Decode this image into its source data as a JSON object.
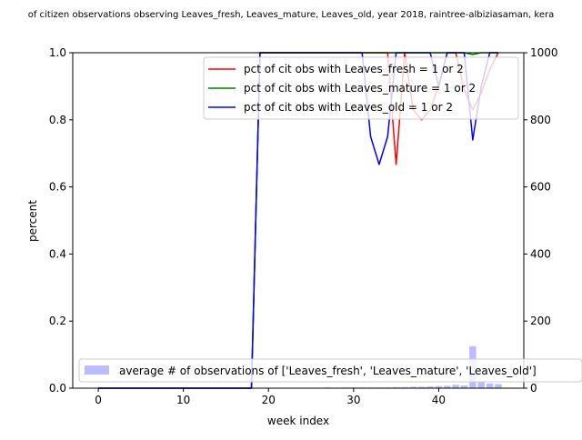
{
  "chart_data": {
    "type": "line",
    "title": "of citizen observations observing Leaves_fresh, Leaves_mature, Leaves_old, year 2018, raintree-albiziasaman, kera",
    "xlabel": "week index",
    "ylabel": "percent",
    "xlim": [
      -3,
      50
    ],
    "ylim": [
      0,
      1.0
    ],
    "y2lim": [
      0,
      1000
    ],
    "x_ticks": [
      0,
      10,
      20,
      30,
      40
    ],
    "y_ticks": [
      0.0,
      0.2,
      0.4,
      0.6,
      0.8,
      1.0
    ],
    "y2_ticks": [
      0,
      200,
      400,
      600,
      800,
      1000
    ],
    "legend_position": "upper right",
    "legend_bar_position": "lower left",
    "series": [
      {
        "name": "pct of cit obs with Leaves_fresh = 1 or 2",
        "color": "#ff0000",
        "x": [
          0,
          1,
          2,
          3,
          4,
          5,
          6,
          7,
          8,
          9,
          10,
          11,
          12,
          13,
          14,
          15,
          16,
          17,
          18,
          19,
          20,
          21,
          22,
          23,
          24,
          25,
          26,
          27,
          28,
          29,
          30,
          31,
          32,
          33,
          34,
          35,
          36,
          37,
          38,
          39,
          40,
          41,
          42,
          43,
          44,
          45,
          46,
          47
        ],
        "y": [
          0,
          0,
          0,
          0,
          0,
          0,
          0,
          0,
          0,
          0,
          0,
          0,
          0,
          0,
          0,
          0,
          0,
          0,
          0,
          1,
          1,
          1,
          1,
          1,
          1,
          1,
          1,
          1,
          1,
          1,
          1,
          1,
          1,
          1,
          1,
          0.667,
          1,
          0.83,
          0.8,
          0.83,
          0.9,
          1,
          1,
          0.89,
          0.83,
          0.88,
          0.95,
          1
        ]
      },
      {
        "name": "pct of cit obs with Leaves_mature = 1 or 2",
        "color": "#008000",
        "x": [
          0,
          1,
          2,
          3,
          4,
          5,
          6,
          7,
          8,
          9,
          10,
          11,
          12,
          13,
          14,
          15,
          16,
          17,
          18,
          19,
          20,
          21,
          22,
          23,
          24,
          25,
          26,
          27,
          28,
          29,
          30,
          31,
          32,
          33,
          34,
          35,
          36,
          37,
          38,
          39,
          40,
          41,
          42,
          43,
          44,
          45,
          46,
          47
        ],
        "y": [
          0,
          0,
          0,
          0,
          0,
          0,
          0,
          0,
          0,
          0,
          0,
          0,
          0,
          0,
          0,
          0,
          0,
          0,
          0,
          1,
          1,
          1,
          1,
          1,
          1,
          1,
          1,
          1,
          1,
          1,
          1,
          1,
          1,
          1,
          1,
          1,
          1,
          1,
          1,
          1,
          1,
          1,
          1,
          1,
          0.995,
          1,
          1,
          1
        ]
      },
      {
        "name": "pct of cit obs with Leaves_old = 1 or 2",
        "color": "#0000ff",
        "x": [
          0,
          1,
          2,
          3,
          4,
          5,
          6,
          7,
          8,
          9,
          10,
          11,
          12,
          13,
          14,
          15,
          16,
          17,
          18,
          19,
          20,
          21,
          22,
          23,
          24,
          25,
          26,
          27,
          28,
          29,
          30,
          31,
          32,
          33,
          34,
          35,
          36,
          37,
          38,
          39,
          40,
          41,
          42,
          43,
          44,
          45,
          46,
          47
        ],
        "y": [
          0,
          0,
          0,
          0,
          0,
          0,
          0,
          0,
          0,
          0,
          0,
          0,
          0,
          0,
          0,
          0,
          0,
          0,
          0,
          1,
          1,
          1,
          1,
          1,
          1,
          1,
          1,
          1,
          1,
          1,
          1,
          1,
          0.75,
          0.667,
          0.75,
          1,
          1,
          1,
          1,
          1,
          0.9,
          1,
          1,
          1,
          0.74,
          0.9,
          1,
          1
        ]
      }
    ],
    "bar_series": {
      "name": "average # of observations of ['Leaves_fresh', 'Leaves_mature', 'Leaves_old']",
      "color": "#bbbbff",
      "axis": "right",
      "x": [
        0,
        1,
        2,
        3,
        4,
        5,
        6,
        7,
        8,
        9,
        10,
        11,
        12,
        13,
        14,
        15,
        16,
        17,
        18,
        19,
        20,
        21,
        22,
        23,
        24,
        25,
        26,
        27,
        28,
        29,
        30,
        31,
        32,
        33,
        34,
        35,
        36,
        37,
        38,
        39,
        40,
        41,
        42,
        43,
        44,
        45,
        46,
        47
      ],
      "values": [
        0,
        0,
        0,
        0,
        0,
        0,
        0,
        0,
        0,
        0,
        0,
        0,
        0,
        0,
        0,
        0,
        0,
        0,
        0,
        1,
        1,
        1,
        1,
        1,
        1,
        1,
        1,
        2,
        1,
        2,
        2,
        2,
        2,
        2,
        2,
        3,
        3,
        4,
        4,
        5,
        6,
        7,
        10,
        8,
        125,
        20,
        14,
        12
      ]
    }
  }
}
